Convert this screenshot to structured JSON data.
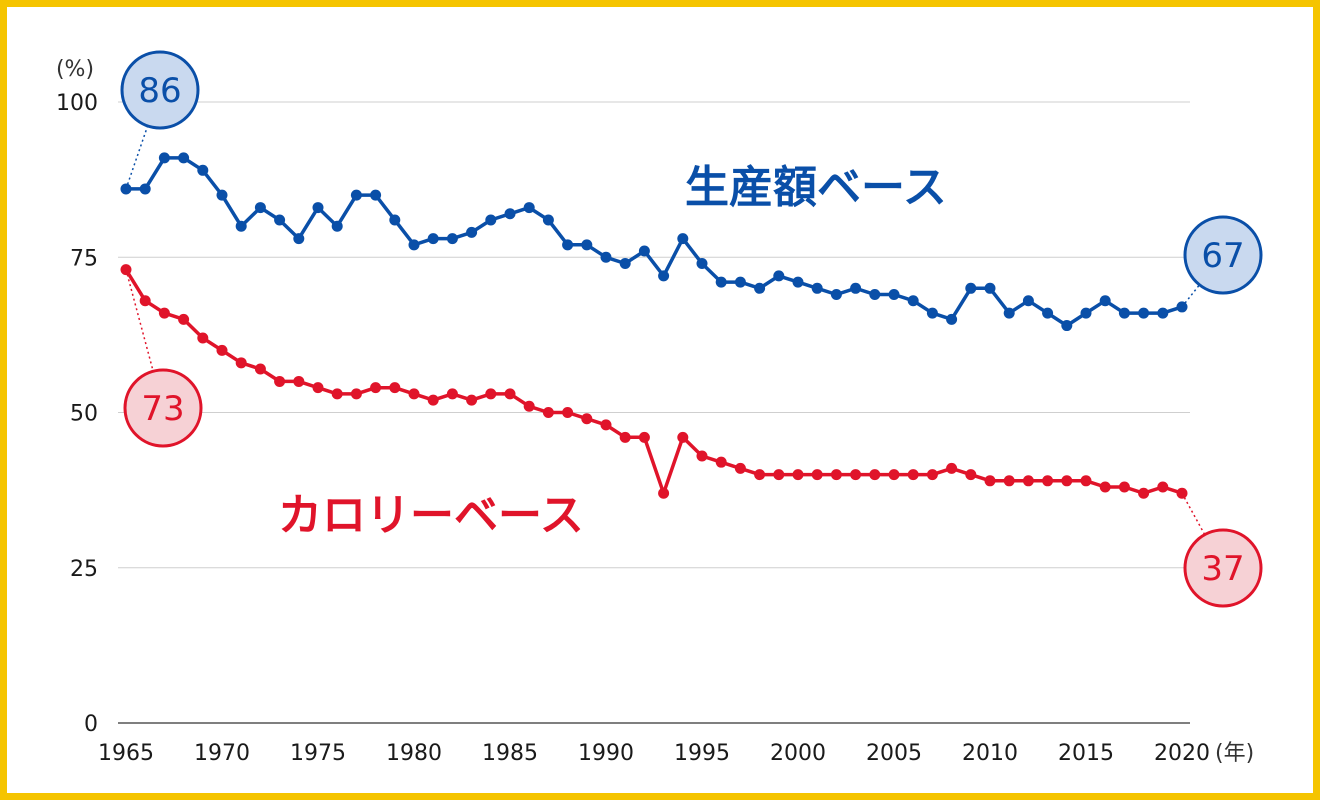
{
  "chart_data": {
    "type": "line",
    "title": "",
    "xlabel": "",
    "ylabel": "",
    "y_unit": "(%)",
    "x_unit": "(年)",
    "xlim": [
      1965,
      2020
    ],
    "ylim": [
      0,
      100
    ],
    "y_ticks": [
      0,
      25,
      50,
      75,
      100
    ],
    "x_ticks": [
      1965,
      1970,
      1975,
      1980,
      1985,
      1990,
      1995,
      2000,
      2005,
      2010,
      2015,
      2020
    ],
    "grid": true,
    "x": [
      1965,
      1966,
      1967,
      1968,
      1969,
      1970,
      1971,
      1972,
      1973,
      1974,
      1975,
      1976,
      1977,
      1978,
      1979,
      1980,
      1981,
      1982,
      1983,
      1984,
      1985,
      1986,
      1987,
      1988,
      1989,
      1990,
      1991,
      1992,
      1993,
      1994,
      1995,
      1996,
      1997,
      1998,
      1999,
      2000,
      2001,
      2002,
      2003,
      2004,
      2005,
      2006,
      2007,
      2008,
      2009,
      2010,
      2011,
      2012,
      2013,
      2014,
      2015,
      2016,
      2017,
      2018,
      2019,
      2020
    ],
    "series": [
      {
        "name": "生産額ベース",
        "color": "#0a4fa8",
        "bubble_fill": "#c9d9ef",
        "values": [
          86,
          86,
          91,
          91,
          89,
          85,
          80,
          83,
          81,
          78,
          83,
          80,
          85,
          85,
          81,
          77,
          78,
          78,
          79,
          81,
          82,
          83,
          81,
          77,
          77,
          75,
          74,
          76,
          72,
          78,
          74,
          71,
          71,
          70,
          72,
          71,
          70,
          69,
          70,
          69,
          69,
          68,
          66,
          65,
          70,
          70,
          66,
          68,
          66,
          64,
          66,
          68,
          66,
          66,
          66,
          67
        ],
        "start_label": "86",
        "end_label": "67"
      },
      {
        "name": "カロリーベース",
        "color": "#e0142a",
        "bubble_fill": "#f6d1d5",
        "values": [
          73,
          68,
          66,
          65,
          62,
          60,
          58,
          57,
          55,
          55,
          54,
          53,
          53,
          54,
          54,
          53,
          52,
          53,
          52,
          53,
          53,
          51,
          50,
          50,
          49,
          48,
          46,
          46,
          37,
          46,
          43,
          42,
          41,
          40,
          40,
          40,
          40,
          40,
          40,
          40,
          40,
          40,
          40,
          41,
          40,
          39,
          39,
          39,
          39,
          39,
          39,
          38,
          38,
          37,
          38,
          37
        ],
        "start_label": "73",
        "end_label": "37"
      }
    ]
  }
}
